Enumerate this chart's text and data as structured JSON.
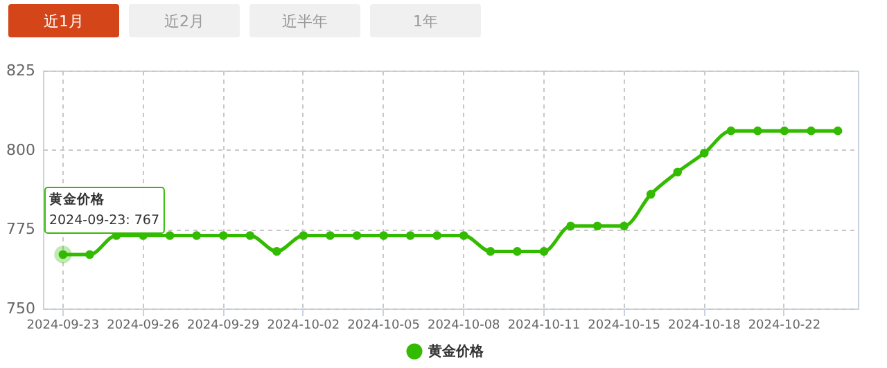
{
  "chart_data": {
    "type": "line",
    "categories": [
      "2024-09-23",
      null,
      null,
      "2024-09-26",
      null,
      null,
      "2024-09-29",
      null,
      null,
      "2024-10-02",
      null,
      null,
      "2024-10-05",
      null,
      null,
      "2024-10-08",
      null,
      null,
      "2024-10-11",
      null,
      null,
      "2024-10-15",
      null,
      null,
      "2024-10-18",
      null,
      null,
      "2024-10-22",
      null,
      null
    ],
    "series": [
      {
        "name": "黄金价格",
        "color": "#33bb00",
        "values": [
          767,
          767,
          773,
          773,
          773,
          773,
          773,
          773,
          768,
          773,
          773,
          773,
          773,
          773,
          773,
          773,
          768,
          768,
          768,
          776,
          776,
          776,
          786,
          793,
          799,
          806,
          806,
          806,
          806,
          806
        ]
      }
    ],
    "ylim": [
      750,
      825
    ],
    "yticks": [
      750,
      775,
      800,
      825
    ],
    "grid": true,
    "legend": "bottom",
    "marker": "circle",
    "line_style": "solid",
    "annotations": [
      "近1月",
      "近2月",
      "近半年",
      "1年",
      {
        "text": "黄金价格\n2024-09-23: 767",
        "x": "2024-09-23",
        "y": 767
      }
    ]
  }
}
